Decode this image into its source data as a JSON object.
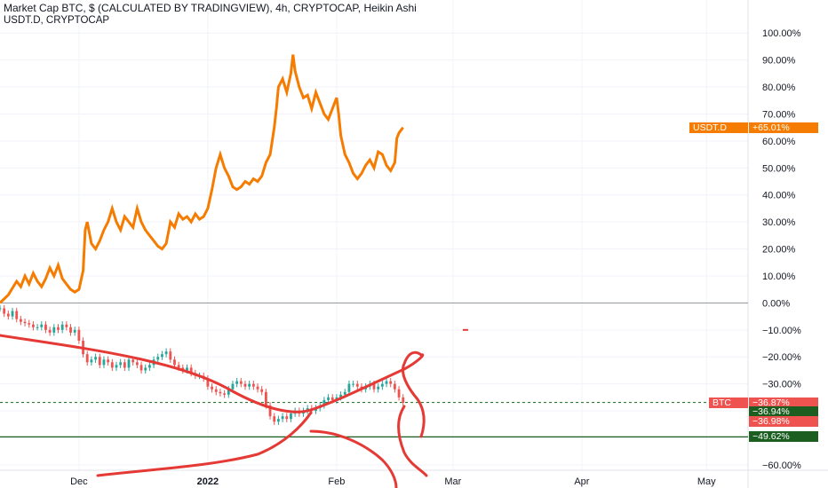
{
  "legend": {
    "main": "Market Cap BTC, $ (CALCULATED BY TRADINGVIEW), 4h, CRYPTOCAP, Heikin Ashi",
    "overlay": "USDT.D, CRYPTOCAP"
  },
  "tags": {
    "usdt_name": "USDT.D",
    "usdt_value": "+65.01%",
    "btc_name": "BTC",
    "btc_value": "−36.87%",
    "value_a": "−36.94%",
    "value_b": "−36.98%",
    "value_c": "−49.62%"
  },
  "colors": {
    "usdt_line": "#f57c00",
    "candle_up": "#26a69a",
    "candle_down": "#ef5350",
    "drawing": "#e53935",
    "hline_green": "#1b5e20",
    "hline_dashed": "#2e7d32",
    "tag_dark_green": "#1b5e20",
    "tag_red": "#ef5350",
    "tag_orange": "#f57c00"
  },
  "chart_data": {
    "type": "line",
    "title": "Market Cap BTC, $ (CALCULATED BY TRADINGVIEW), 4h, CRYPTOCAP, Heikin Ashi",
    "y_axis": {
      "scale": "percent",
      "ticks": [
        100,
        90,
        80,
        70,
        60,
        50,
        40,
        30,
        20,
        10,
        0,
        -10,
        -20,
        -30,
        -40,
        -50,
        -60
      ],
      "tick_labels": [
        "100.00%",
        "90.00%",
        "80.00%",
        "70.00%",
        "60.00%",
        "50.00%",
        "40.00%",
        "30.00%",
        "20.00%",
        "10.00%",
        "0.00%",
        "−10.00%",
        "−20.00%",
        "−30.00%",
        "−40.00%",
        "−50.00%",
        "−60.00%"
      ],
      "range": [
        -62,
        105
      ]
    },
    "x_axis": {
      "tick_labels": [
        "Dec",
        "2022",
        "Feb",
        "Mar",
        "Apr",
        "May"
      ],
      "tick_days": [
        15,
        46,
        77,
        105,
        136,
        166
      ],
      "range_days": [
        -4,
        176
      ]
    },
    "series": [
      {
        "name": "USDT.D",
        "kind": "line",
        "points": [
          [
            -4,
            0
          ],
          [
            -2,
            3
          ],
          [
            0,
            8
          ],
          [
            1,
            6
          ],
          [
            2,
            10
          ],
          [
            3,
            7
          ],
          [
            4,
            11
          ],
          [
            5,
            8
          ],
          [
            6,
            6
          ],
          [
            7,
            9
          ],
          [
            8,
            13
          ],
          [
            9,
            10
          ],
          [
            10,
            14
          ],
          [
            11,
            9
          ],
          [
            12,
            7
          ],
          [
            13,
            5
          ],
          [
            14,
            4
          ],
          [
            15,
            5
          ],
          [
            16,
            12
          ],
          [
            16.5,
            27
          ],
          [
            17,
            30
          ],
          [
            18,
            22
          ],
          [
            19,
            20
          ],
          [
            20,
            23
          ],
          [
            21,
            27
          ],
          [
            22,
            30
          ],
          [
            23,
            35
          ],
          [
            24,
            30
          ],
          [
            25,
            27
          ],
          [
            26,
            32
          ],
          [
            27,
            30
          ],
          [
            28,
            28
          ],
          [
            29,
            35
          ],
          [
            30,
            30
          ],
          [
            31,
            27
          ],
          [
            32,
            25
          ],
          [
            33,
            23
          ],
          [
            34,
            21
          ],
          [
            35,
            20
          ],
          [
            36,
            22
          ],
          [
            37,
            30
          ],
          [
            38,
            28
          ],
          [
            39,
            33
          ],
          [
            40,
            31
          ],
          [
            41,
            32
          ],
          [
            42,
            30
          ],
          [
            43,
            33
          ],
          [
            44,
            31
          ],
          [
            45,
            32
          ],
          [
            46,
            35
          ],
          [
            47,
            42
          ],
          [
            48,
            50
          ],
          [
            49,
            55
          ],
          [
            50,
            50
          ],
          [
            51,
            47
          ],
          [
            52,
            43
          ],
          [
            53,
            42
          ],
          [
            54,
            43
          ],
          [
            55,
            45
          ],
          [
            56,
            44
          ],
          [
            57,
            46
          ],
          [
            58,
            45
          ],
          [
            59,
            47
          ],
          [
            60,
            52
          ],
          [
            61,
            55
          ],
          [
            62,
            65
          ],
          [
            62.5,
            72
          ],
          [
            63,
            80
          ],
          [
            64,
            83
          ],
          [
            65,
            78
          ],
          [
            66,
            85
          ],
          [
            66.5,
            92
          ],
          [
            67,
            86
          ],
          [
            68,
            80
          ],
          [
            69,
            76
          ],
          [
            70,
            77
          ],
          [
            71,
            72
          ],
          [
            72,
            78
          ],
          [
            73,
            74
          ],
          [
            74,
            70
          ],
          [
            75,
            68
          ],
          [
            76,
            72
          ],
          [
            77,
            76
          ],
          [
            77.5,
            70
          ],
          [
            78,
            62
          ],
          [
            79,
            55
          ],
          [
            80,
            52
          ],
          [
            81,
            48
          ],
          [
            82,
            46
          ],
          [
            83,
            48
          ],
          [
            84,
            51
          ],
          [
            85,
            53
          ],
          [
            86,
            50
          ],
          [
            87,
            56
          ],
          [
            88,
            55
          ],
          [
            89,
            51
          ],
          [
            90,
            49
          ],
          [
            91,
            52
          ],
          [
            91.5,
            61
          ],
          [
            92,
            63
          ],
          [
            93,
            65
          ]
        ]
      },
      {
        "name": "BTC",
        "kind": "candles",
        "points": [
          [
            -4,
            -2
          ],
          [
            -3,
            -4
          ],
          [
            -2,
            -5
          ],
          [
            -1,
            -3
          ],
          [
            0,
            -6
          ],
          [
            1,
            -7
          ],
          [
            2,
            -7.5
          ],
          [
            3,
            -8
          ],
          [
            4,
            -9
          ],
          [
            5,
            -9
          ],
          [
            6,
            -8
          ],
          [
            7,
            -10
          ],
          [
            8,
            -11
          ],
          [
            9,
            -9
          ],
          [
            10,
            -10
          ],
          [
            11,
            -8
          ],
          [
            12,
            -9
          ],
          [
            13,
            -11
          ],
          [
            14,
            -10
          ],
          [
            15,
            -14
          ],
          [
            16,
            -19
          ],
          [
            17,
            -22
          ],
          [
            18,
            -21
          ],
          [
            19,
            -20
          ],
          [
            20,
            -23
          ],
          [
            21,
            -21
          ],
          [
            22,
            -22
          ],
          [
            23,
            -24
          ],
          [
            24,
            -23
          ],
          [
            25,
            -22
          ],
          [
            26,
            -24
          ],
          [
            27,
            -21
          ],
          [
            28,
            -22
          ],
          [
            29,
            -23
          ],
          [
            30,
            -25
          ],
          [
            31,
            -24
          ],
          [
            32,
            -23
          ],
          [
            33,
            -21
          ],
          [
            34,
            -20
          ],
          [
            35,
            -19
          ],
          [
            36,
            -18
          ],
          [
            37,
            -21
          ],
          [
            38,
            -23
          ],
          [
            39,
            -24
          ],
          [
            40,
            -25
          ],
          [
            41,
            -24
          ],
          [
            42,
            -26
          ],
          [
            43,
            -27
          ],
          [
            44,
            -27
          ],
          [
            45,
            -28
          ],
          [
            46,
            -31
          ],
          [
            47,
            -32
          ],
          [
            48,
            -33
          ],
          [
            49,
            -33.5
          ],
          [
            50,
            -34
          ],
          [
            51,
            -32
          ],
          [
            52,
            -30
          ],
          [
            53,
            -29
          ],
          [
            54,
            -30
          ],
          [
            55,
            -31
          ],
          [
            56,
            -30
          ],
          [
            57,
            -31
          ],
          [
            58,
            -32
          ],
          [
            59,
            -33
          ],
          [
            60,
            -38
          ],
          [
            61,
            -42
          ],
          [
            62,
            -44
          ],
          [
            63,
            -43
          ],
          [
            64,
            -42
          ],
          [
            65,
            -43
          ],
          [
            66,
            -41
          ],
          [
            67,
            -40
          ],
          [
            68,
            -41
          ],
          [
            69,
            -40
          ],
          [
            70,
            -39
          ],
          [
            71,
            -40
          ],
          [
            72,
            -39
          ],
          [
            73,
            -38
          ],
          [
            74,
            -36
          ],
          [
            75,
            -35
          ],
          [
            76,
            -36
          ],
          [
            77,
            -35
          ],
          [
            78,
            -34
          ],
          [
            79,
            -33
          ],
          [
            80,
            -30
          ],
          [
            81,
            -30
          ],
          [
            82,
            -31
          ],
          [
            83,
            -32
          ],
          [
            84,
            -31
          ],
          [
            85,
            -30
          ],
          [
            86,
            -32
          ],
          [
            87,
            -31
          ],
          [
            88,
            -30
          ],
          [
            89,
            -29
          ],
          [
            90,
            -30
          ],
          [
            91,
            -32
          ],
          [
            92,
            -35
          ],
          [
            93,
            -37
          ]
        ]
      }
    ],
    "horizontal_lines": [
      {
        "label": "0.00%",
        "value": 0
      },
      {
        "label": "BTC",
        "value": -36.87,
        "style": "dashed"
      },
      {
        "label": "−49.62%",
        "value": -49.62
      }
    ],
    "annotations": [
      {
        "label": "−10.00%",
        "value_at_day": 108
      }
    ],
    "grid": true
  }
}
